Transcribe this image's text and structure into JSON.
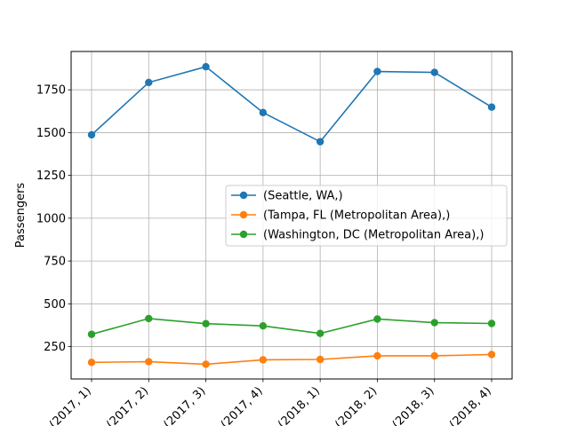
{
  "chart_data": {
    "type": "line",
    "categories": [
      "(2017, 1)",
      "(2017, 2)",
      "(2017, 3)",
      "(2017, 4)",
      "(2018, 1)",
      "(2018, 2)",
      "(2018, 3)",
      "(2018, 4)"
    ],
    "series": [
      {
        "name": "(Seattle, WA,)",
        "color": "#1f77b4",
        "values": [
          1487,
          1793,
          1885,
          1617,
          1447,
          1857,
          1852,
          1649
        ]
      },
      {
        "name": "(Tampa, FL (Metropolitan Area),)",
        "color": "#ff7f0e",
        "values": [
          158,
          162,
          147,
          173,
          175,
          196,
          196,
          204
        ]
      },
      {
        "name": "(Washington, DC (Metropolitan Area),)",
        "color": "#2ca02c",
        "values": [
          322,
          414,
          384,
          371,
          327,
          411,
          390,
          385
        ]
      }
    ],
    "title": "",
    "xlabel": "",
    "ylabel": "Passengers",
    "yticks": [
      250,
      500,
      750,
      1000,
      1250,
      1500,
      1750
    ],
    "ylim": [
      61,
      1974
    ],
    "grid": true,
    "legend_position": "center-right"
  }
}
